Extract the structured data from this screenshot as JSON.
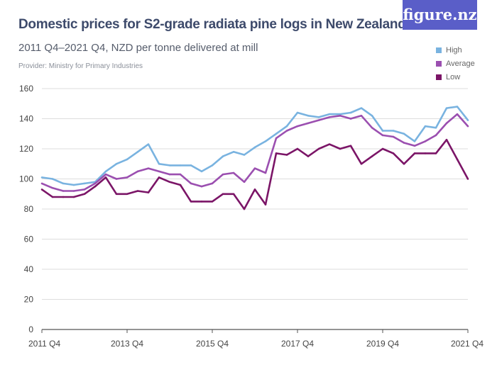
{
  "header": {
    "title": "Domestic prices for S2-grade radiata pine logs in New Zealand",
    "subtitle": "2011 Q4–2021 Q4, NZD per tonne delivered at mill",
    "provider": "Provider: Ministry for Primary Industries",
    "logo": "figure.nz",
    "logo_color": "#5a5ec8"
  },
  "chart_data": {
    "type": "line",
    "title": "Domestic prices for S2-grade radiata pine logs in New Zealand",
    "subtitle": "2011 Q4–2021 Q4, NZD per tonne delivered at mill",
    "xlabel": "",
    "ylabel": "",
    "ylim": [
      0,
      160
    ],
    "yticks": [
      "0",
      "20",
      "40",
      "60",
      "80",
      "100",
      "120",
      "140",
      "160"
    ],
    "xticks": [
      "2011 Q4",
      "2013 Q4",
      "2015 Q4",
      "2017 Q4",
      "2019 Q4",
      "2021 Q4"
    ],
    "x_start": "2011 Q4",
    "x_end": "2021 Q4",
    "x_step": "quarter",
    "grid": true,
    "legend": "top-right",
    "series": [
      {
        "name": "High",
        "color": "#79b3e0",
        "values": [
          101,
          100,
          97,
          96,
          97,
          98,
          105,
          110,
          113,
          118,
          123,
          110,
          109,
          109,
          109,
          105,
          109,
          115,
          118,
          116,
          121,
          125,
          130,
          135,
          144,
          142,
          141,
          143,
          143,
          144,
          147,
          142,
          132,
          132,
          130,
          125,
          135,
          134,
          147,
          148,
          139
        ]
      },
      {
        "name": "Average",
        "color": "#9b4fb0",
        "values": [
          97,
          94,
          92,
          92,
          93,
          97,
          103,
          100,
          101,
          105,
          107,
          105,
          103,
          103,
          97,
          95,
          97,
          103,
          104,
          98,
          107,
          104,
          127,
          132,
          135,
          137,
          139,
          141,
          142,
          140,
          142,
          134,
          129,
          128,
          124,
          122,
          125,
          129,
          137,
          143,
          135
        ]
      },
      {
        "name": "Low",
        "color": "#7b1567",
        "values": [
          93,
          88,
          88,
          88,
          90,
          95,
          101,
          90,
          90,
          92,
          91,
          101,
          98,
          96,
          85,
          85,
          85,
          90,
          90,
          80,
          93,
          83,
          117,
          116,
          120,
          115,
          120,
          123,
          120,
          122,
          110,
          115,
          120,
          117,
          110,
          117,
          117,
          117,
          126,
          113,
          100
        ]
      }
    ]
  }
}
